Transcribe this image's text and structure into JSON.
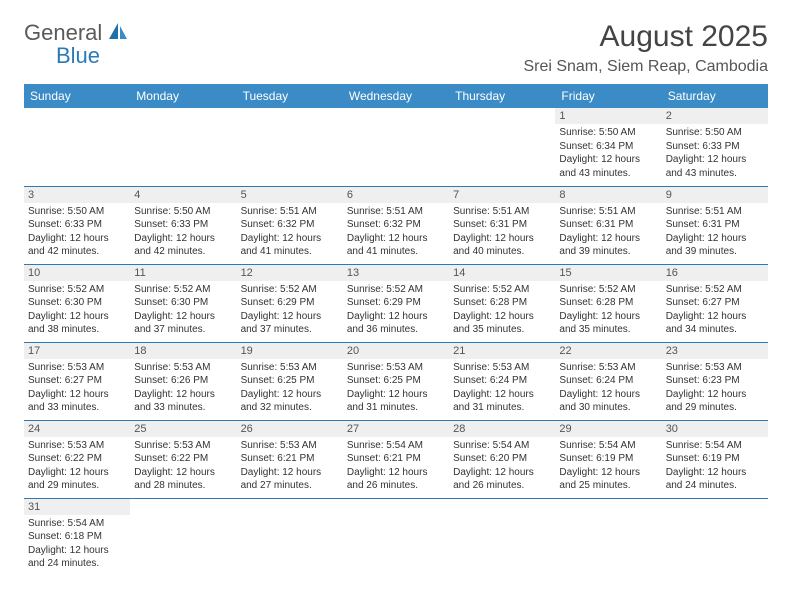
{
  "logo": {
    "general": "General",
    "blue": "Blue"
  },
  "title": "August 2025",
  "location": "Srei Snam, Siem Reap, Cambodia",
  "day_headers": [
    "Sunday",
    "Monday",
    "Tuesday",
    "Wednesday",
    "Thursday",
    "Friday",
    "Saturday"
  ],
  "header_bg": "#3b8bc6",
  "header_fg": "#ffffff",
  "border_color": "#2a7ab8",
  "daynum_bg": "#efefef",
  "font_size_title": 30,
  "font_size_location": 16,
  "font_size_header": 12,
  "font_size_daynum": 11,
  "font_size_info": 10,
  "weeks": [
    [
      null,
      null,
      null,
      null,
      null,
      {
        "n": "1",
        "sunrise": "5:50 AM",
        "sunset": "6:34 PM",
        "daylight": "12 hours and 43 minutes."
      },
      {
        "n": "2",
        "sunrise": "5:50 AM",
        "sunset": "6:33 PM",
        "daylight": "12 hours and 43 minutes."
      }
    ],
    [
      {
        "n": "3",
        "sunrise": "5:50 AM",
        "sunset": "6:33 PM",
        "daylight": "12 hours and 42 minutes."
      },
      {
        "n": "4",
        "sunrise": "5:50 AM",
        "sunset": "6:33 PM",
        "daylight": "12 hours and 42 minutes."
      },
      {
        "n": "5",
        "sunrise": "5:51 AM",
        "sunset": "6:32 PM",
        "daylight": "12 hours and 41 minutes."
      },
      {
        "n": "6",
        "sunrise": "5:51 AM",
        "sunset": "6:32 PM",
        "daylight": "12 hours and 41 minutes."
      },
      {
        "n": "7",
        "sunrise": "5:51 AM",
        "sunset": "6:31 PM",
        "daylight": "12 hours and 40 minutes."
      },
      {
        "n": "8",
        "sunrise": "5:51 AM",
        "sunset": "6:31 PM",
        "daylight": "12 hours and 39 minutes."
      },
      {
        "n": "9",
        "sunrise": "5:51 AM",
        "sunset": "6:31 PM",
        "daylight": "12 hours and 39 minutes."
      }
    ],
    [
      {
        "n": "10",
        "sunrise": "5:52 AM",
        "sunset": "6:30 PM",
        "daylight": "12 hours and 38 minutes."
      },
      {
        "n": "11",
        "sunrise": "5:52 AM",
        "sunset": "6:30 PM",
        "daylight": "12 hours and 37 minutes."
      },
      {
        "n": "12",
        "sunrise": "5:52 AM",
        "sunset": "6:29 PM",
        "daylight": "12 hours and 37 minutes."
      },
      {
        "n": "13",
        "sunrise": "5:52 AM",
        "sunset": "6:29 PM",
        "daylight": "12 hours and 36 minutes."
      },
      {
        "n": "14",
        "sunrise": "5:52 AM",
        "sunset": "6:28 PM",
        "daylight": "12 hours and 35 minutes."
      },
      {
        "n": "15",
        "sunrise": "5:52 AM",
        "sunset": "6:28 PM",
        "daylight": "12 hours and 35 minutes."
      },
      {
        "n": "16",
        "sunrise": "5:52 AM",
        "sunset": "6:27 PM",
        "daylight": "12 hours and 34 minutes."
      }
    ],
    [
      {
        "n": "17",
        "sunrise": "5:53 AM",
        "sunset": "6:27 PM",
        "daylight": "12 hours and 33 minutes."
      },
      {
        "n": "18",
        "sunrise": "5:53 AM",
        "sunset": "6:26 PM",
        "daylight": "12 hours and 33 minutes."
      },
      {
        "n": "19",
        "sunrise": "5:53 AM",
        "sunset": "6:25 PM",
        "daylight": "12 hours and 32 minutes."
      },
      {
        "n": "20",
        "sunrise": "5:53 AM",
        "sunset": "6:25 PM",
        "daylight": "12 hours and 31 minutes."
      },
      {
        "n": "21",
        "sunrise": "5:53 AM",
        "sunset": "6:24 PM",
        "daylight": "12 hours and 31 minutes."
      },
      {
        "n": "22",
        "sunrise": "5:53 AM",
        "sunset": "6:24 PM",
        "daylight": "12 hours and 30 minutes."
      },
      {
        "n": "23",
        "sunrise": "5:53 AM",
        "sunset": "6:23 PM",
        "daylight": "12 hours and 29 minutes."
      }
    ],
    [
      {
        "n": "24",
        "sunrise": "5:53 AM",
        "sunset": "6:22 PM",
        "daylight": "12 hours and 29 minutes."
      },
      {
        "n": "25",
        "sunrise": "5:53 AM",
        "sunset": "6:22 PM",
        "daylight": "12 hours and 28 minutes."
      },
      {
        "n": "26",
        "sunrise": "5:53 AM",
        "sunset": "6:21 PM",
        "daylight": "12 hours and 27 minutes."
      },
      {
        "n": "27",
        "sunrise": "5:54 AM",
        "sunset": "6:21 PM",
        "daylight": "12 hours and 26 minutes."
      },
      {
        "n": "28",
        "sunrise": "5:54 AM",
        "sunset": "6:20 PM",
        "daylight": "12 hours and 26 minutes."
      },
      {
        "n": "29",
        "sunrise": "5:54 AM",
        "sunset": "6:19 PM",
        "daylight": "12 hours and 25 minutes."
      },
      {
        "n": "30",
        "sunrise": "5:54 AM",
        "sunset": "6:19 PM",
        "daylight": "12 hours and 24 minutes."
      }
    ],
    [
      {
        "n": "31",
        "sunrise": "5:54 AM",
        "sunset": "6:18 PM",
        "daylight": "12 hours and 24 minutes."
      },
      null,
      null,
      null,
      null,
      null,
      null
    ]
  ],
  "labels": {
    "sunrise": "Sunrise: ",
    "sunset": "Sunset: ",
    "daylight": "Daylight: "
  }
}
